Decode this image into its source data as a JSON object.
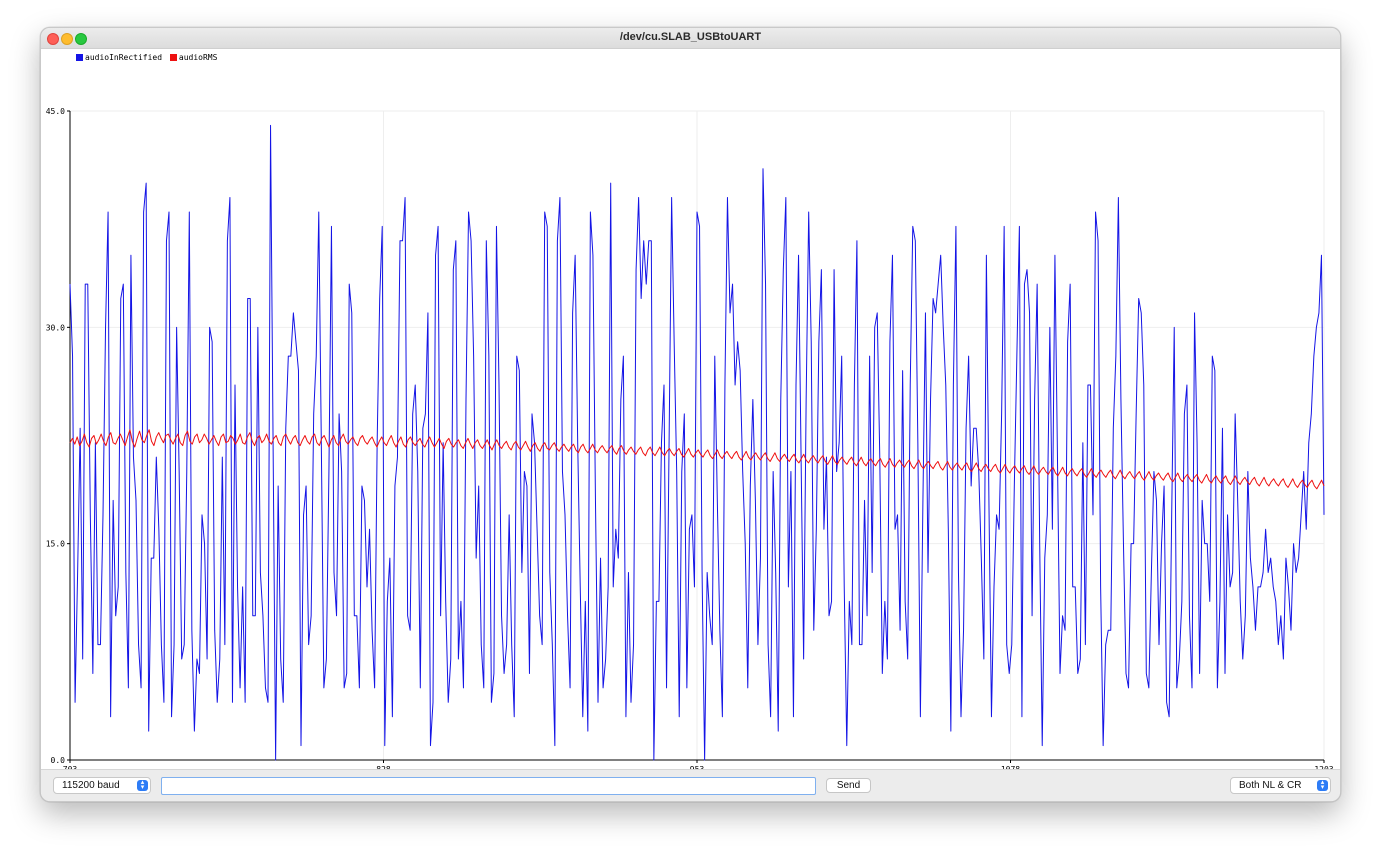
{
  "window": {
    "title": "/dev/cu.SLAB_USBtoUART"
  },
  "legend": [
    {
      "name": "audioInRectified",
      "color": "#1414e6"
    },
    {
      "name": "audioRMS",
      "color": "#ee1111"
    }
  ],
  "controls": {
    "baud": "115200 baud",
    "send_label": "Send",
    "input_value": "",
    "line_ending": "Both NL & CR"
  },
  "chart_data": {
    "type": "line",
    "xlim": [
      703,
      1203
    ],
    "ylim": [
      0,
      45
    ],
    "x_ticks": [
      "703",
      "828",
      "953",
      "1078",
      "1203"
    ],
    "y_ticks": [
      "0.0",
      "15.0",
      "30.0",
      "45.0"
    ],
    "grid": true,
    "series": [
      {
        "name": "audioInRectified",
        "color": "#1414e6",
        "values": [
          33,
          28,
          4,
          13,
          23,
          7,
          33,
          33,
          17,
          6,
          22,
          8,
          8,
          17,
          30,
          38,
          3,
          18,
          10,
          12,
          32,
          33,
          13,
          5,
          35,
          21,
          18,
          8,
          5,
          38,
          40,
          2,
          14,
          14,
          21,
          16,
          8,
          4,
          36,
          38,
          3,
          8,
          30,
          20,
          7,
          8,
          20,
          38,
          9,
          2,
          7,
          6,
          17,
          15,
          7,
          30,
          29,
          9,
          4,
          7,
          21,
          8,
          36,
          39,
          4,
          26,
          12,
          5,
          12,
          4,
          32,
          32,
          10,
          10,
          30,
          13,
          10,
          5,
          4,
          44,
          22,
          0,
          19,
          7,
          4,
          23,
          28,
          28,
          31,
          29,
          27,
          1,
          17,
          19,
          8,
          10,
          24,
          28,
          38,
          22,
          5,
          7,
          20,
          37,
          13,
          10,
          24,
          20,
          5,
          6,
          33,
          31,
          10,
          10,
          5,
          19,
          18,
          12,
          16,
          9,
          5,
          22,
          32,
          37,
          1,
          11,
          14,
          3,
          19,
          21,
          36,
          36,
          39,
          10,
          9,
          24,
          26,
          20,
          5,
          23,
          24,
          31,
          1,
          4,
          35,
          37,
          10,
          22,
          11,
          4,
          7,
          34,
          36,
          7,
          11,
          5,
          25,
          38,
          36,
          28,
          14,
          19,
          8,
          5,
          36,
          28,
          4,
          6,
          37,
          26,
          10,
          6,
          8,
          17,
          8,
          3,
          28,
          27,
          13,
          20,
          19,
          6,
          24,
          22,
          16,
          10,
          8,
          38,
          37,
          13,
          8,
          1,
          36,
          39,
          20,
          17,
          10,
          5,
          31,
          35,
          22,
          12,
          3,
          11,
          2,
          38,
          35,
          18,
          4,
          14,
          5,
          7,
          12,
          40,
          12,
          16,
          14,
          25,
          28,
          3,
          13,
          4,
          8,
          34,
          39,
          32,
          36,
          33,
          36,
          36,
          0,
          11,
          11,
          22,
          26,
          5,
          22,
          39,
          29,
          20,
          3,
          20,
          24,
          5,
          16,
          17,
          12,
          38,
          37,
          13,
          0,
          13,
          10,
          8,
          28,
          18,
          9,
          3,
          26,
          39,
          31,
          33,
          26,
          29,
          27,
          20,
          15,
          5,
          19,
          25,
          18,
          8,
          14,
          41,
          33,
          8,
          3,
          20,
          13,
          2,
          25,
          34,
          39,
          12,
          20,
          3,
          26,
          35,
          21,
          7,
          25,
          38,
          29,
          9,
          16,
          29,
          34,
          16,
          21,
          10,
          11,
          34,
          20,
          22,
          28,
          12,
          1,
          11,
          8,
          26,
          36,
          8,
          8,
          18,
          10,
          28,
          13,
          30,
          31,
          21,
          6,
          11,
          7,
          29,
          35,
          16,
          17,
          9,
          27,
          11,
          7,
          26,
          37,
          36,
          22,
          3,
          18,
          31,
          13,
          25,
          32,
          31,
          33,
          35,
          30,
          26,
          16,
          2,
          26,
          37,
          13,
          3,
          9,
          23,
          28,
          19,
          23,
          23,
          20,
          14,
          7,
          35,
          18,
          3,
          12,
          17,
          16,
          24,
          37,
          8,
          6,
          8,
          19,
          28,
          37,
          3,
          33,
          34,
          31,
          10,
          25,
          33,
          15,
          1,
          14,
          17,
          30,
          16,
          35,
          21,
          6,
          10,
          9,
          29,
          33,
          12,
          12,
          6,
          7,
          22,
          8,
          26,
          26,
          17,
          38,
          36,
          12,
          1,
          8,
          9,
          9,
          23,
          28,
          39,
          25,
          15,
          6,
          5,
          15,
          15,
          24,
          32,
          31,
          26,
          6,
          5,
          13,
          20,
          18,
          8,
          15,
          19,
          4,
          3,
          17,
          30,
          5,
          7,
          11,
          24,
          26,
          10,
          5,
          31,
          22,
          6,
          18,
          15,
          15,
          11,
          28,
          27,
          5,
          11,
          23,
          6,
          17,
          12,
          13,
          24,
          18,
          11,
          7,
          10,
          20,
          14,
          12,
          9,
          12,
          12,
          13,
          16,
          13,
          14,
          12,
          11,
          8,
          10,
          7,
          14,
          12,
          9,
          15,
          13,
          14,
          17,
          20,
          16,
          22,
          24,
          28,
          30,
          31,
          35,
          17
        ]
      },
      {
        "name": "audioRMS",
        "color": "#ee1111",
        "values": [
          22.0,
          22.3,
          21.9,
          22.4,
          21.8,
          22.1,
          22.6,
          22.0,
          21.7,
          22.3,
          22.5,
          21.9,
          22.2,
          22.6,
          22.1,
          21.8,
          22.4,
          22.7,
          22.0,
          21.9,
          22.3,
          22.6,
          22.2,
          21.8,
          22.4,
          22.9,
          22.1,
          21.7,
          22.3,
          22.8,
          22.2,
          22.0,
          22.5,
          22.9,
          22.1,
          21.8,
          22.4,
          22.7,
          22.3,
          22.0,
          22.5,
          22.6,
          22.2,
          21.9,
          22.3,
          22.6,
          22.0,
          21.8,
          22.5,
          22.8,
          22.1,
          21.9,
          22.4,
          22.6,
          22.0,
          22.2,
          22.6,
          22.3,
          21.9,
          22.2,
          22.5,
          22.1,
          21.8,
          22.4,
          22.6,
          22.0,
          22.1,
          22.5,
          22.3,
          21.9,
          22.2,
          22.6,
          22.0,
          21.9,
          22.4,
          22.7,
          22.1,
          21.8,
          22.3,
          22.5,
          22.0,
          22.2,
          22.6,
          22.1,
          21.9,
          22.3,
          22.5,
          22.0,
          21.8,
          22.4,
          22.6,
          22.2,
          21.9,
          22.3,
          22.5,
          22.0,
          21.8,
          22.2,
          22.5,
          22.1,
          21.9,
          22.4,
          22.6,
          22.0,
          21.8,
          22.3,
          22.5,
          22.1,
          21.7,
          22.2,
          22.5,
          22.0,
          21.8,
          22.3,
          22.6,
          22.1,
          21.9,
          22.2,
          22.4,
          22.0,
          21.8,
          22.3,
          22.5,
          22.1,
          21.9,
          22.2,
          22.4,
          22.0,
          21.7,
          22.1,
          22.4,
          22.0,
          21.8,
          22.2,
          22.5,
          22.0,
          21.7,
          22.1,
          22.4,
          21.9,
          21.7,
          22.2,
          22.4,
          22.0,
          21.8,
          22.1,
          22.3,
          21.9,
          21.7,
          22.1,
          22.4,
          22.0,
          21.7,
          22.0,
          22.3,
          21.9,
          21.6,
          22.1,
          22.3,
          21.9,
          21.7,
          22.0,
          22.2,
          21.8,
          21.6,
          22.0,
          22.3,
          21.9,
          21.6,
          22.0,
          22.2,
          21.8,
          21.6,
          21.9,
          22.2,
          21.8,
          21.5,
          21.9,
          22.2,
          21.8,
          21.6,
          21.9,
          22.1,
          21.7,
          21.5,
          21.9,
          22.1,
          21.7,
          21.5,
          21.8,
          22.1,
          21.7,
          21.4,
          21.8,
          22.0,
          21.6,
          21.4,
          21.8,
          22.0,
          21.6,
          21.5,
          21.8,
          22.0,
          21.6,
          21.4,
          21.7,
          21.9,
          21.6,
          21.4,
          21.7,
          21.9,
          21.5,
          21.3,
          21.7,
          21.9,
          21.5,
          21.3,
          21.6,
          21.9,
          21.5,
          21.3,
          21.6,
          21.8,
          21.5,
          21.3,
          21.6,
          21.8,
          21.4,
          21.2,
          21.6,
          21.8,
          21.4,
          21.2,
          21.5,
          21.7,
          21.4,
          21.2,
          21.5,
          21.7,
          21.3,
          21.1,
          21.5,
          21.7,
          21.3,
          21.1,
          21.4,
          21.7,
          21.3,
          21.1,
          21.4,
          21.6,
          21.3,
          21.1,
          21.4,
          21.6,
          21.2,
          21.0,
          21.3,
          21.6,
          21.2,
          21.0,
          21.3,
          21.5,
          21.2,
          21.0,
          21.3,
          21.5,
          21.1,
          20.9,
          21.2,
          21.5,
          21.1,
          20.9,
          21.2,
          21.4,
          21.1,
          20.9,
          21.2,
          21.4,
          21.0,
          20.8,
          21.1,
          21.4,
          21.0,
          20.8,
          21.1,
          21.3,
          21.0,
          20.8,
          21.1,
          21.3,
          20.9,
          20.7,
          21.0,
          21.3,
          20.9,
          20.7,
          21.0,
          21.2,
          20.9,
          20.7,
          21.0,
          21.2,
          20.8,
          20.6,
          20.9,
          21.2,
          20.8,
          20.6,
          20.9,
          21.1,
          20.8,
          20.6,
          20.9,
          21.1,
          20.7,
          20.5,
          20.8,
          21.1,
          20.7,
          20.5,
          20.8,
          21.0,
          20.7,
          20.5,
          20.8,
          21.0,
          20.6,
          20.4,
          20.7,
          21.0,
          20.6,
          20.4,
          20.7,
          20.9,
          20.6,
          20.4,
          20.7,
          20.9,
          20.5,
          20.3,
          20.6,
          20.9,
          20.5,
          20.3,
          20.6,
          20.8,
          20.5,
          20.3,
          20.6,
          20.8,
          20.4,
          20.2,
          20.5,
          20.8,
          20.4,
          20.2,
          20.5,
          20.7,
          20.4,
          20.2,
          20.5,
          20.7,
          20.3,
          20.1,
          20.4,
          20.7,
          20.3,
          20.1,
          20.4,
          20.6,
          20.3,
          20.1,
          20.4,
          20.6,
          20.2,
          20.0,
          20.3,
          20.6,
          20.2,
          20.0,
          20.3,
          20.5,
          20.2,
          20.0,
          20.3,
          20.5,
          20.1,
          19.9,
          20.2,
          20.5,
          20.1,
          19.9,
          20.2,
          20.4,
          20.1,
          19.9,
          20.2,
          20.4,
          20.0,
          19.8,
          20.1,
          20.4,
          20.0,
          19.8,
          20.1,
          20.3,
          20.0,
          19.8,
          20.1,
          20.3,
          19.9,
          19.7,
          20.0,
          20.3,
          19.9,
          19.7,
          20.0,
          20.2,
          19.9,
          19.7,
          20.0,
          20.2,
          19.8,
          19.6,
          19.9,
          20.2,
          19.8,
          19.6,
          19.9,
          20.1,
          19.8,
          19.6,
          19.9,
          20.1,
          19.7,
          19.5,
          19.8,
          20.1,
          19.7,
          19.5,
          19.8,
          20.0,
          19.7,
          19.5,
          19.8,
          20.0,
          19.6,
          19.4,
          19.7,
          20.0,
          19.6,
          19.4,
          19.7,
          19.9,
          19.6,
          19.4,
          19.7,
          19.9,
          19.5,
          19.3,
          19.6,
          19.9,
          19.5,
          19.3,
          19.6,
          19.8,
          19.5,
          19.3,
          19.6,
          19.8,
          19.4,
          19.2,
          19.5,
          19.8,
          19.4,
          19.2,
          19.5,
          19.7,
          19.4,
          19.2,
          19.5,
          19.7,
          19.3,
          19.1,
          19.4,
          19.7,
          19.3,
          19.1,
          19.4,
          19.6,
          19.3,
          19.1,
          19.4,
          19.6,
          19.2,
          19.0,
          19.3,
          19.6,
          19.2,
          19.0,
          19.3,
          19.5,
          19.2,
          19.0,
          19.3,
          19.5,
          19.1,
          18.9,
          19.2,
          19.5,
          19.1,
          18.9,
          19.2,
          19.4,
          19.1,
          18.9,
          19.2,
          19.4,
          19.0,
          18.8,
          19.1,
          19.4,
          19.0
        ]
      }
    ]
  }
}
